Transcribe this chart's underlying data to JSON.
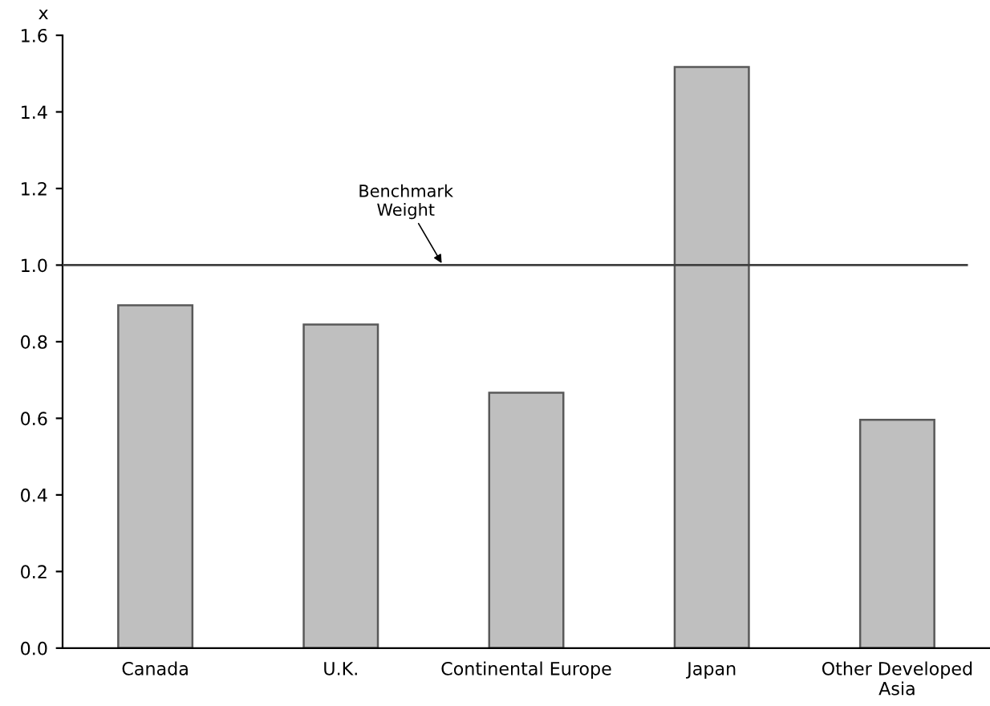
{
  "chart_data": {
    "type": "bar",
    "ylabel": "x",
    "categories": [
      "Canada",
      "U.K.",
      "Continental Europe",
      "Japan",
      "Other Developed\nAsia"
    ],
    "values": [
      0.895,
      0.845,
      0.667,
      1.517,
      0.596
    ],
    "color": "#bfbfbf",
    "ylim": [
      0,
      1.6
    ],
    "yticks": [
      {
        "value": 0,
        "label": "0.0"
      },
      {
        "value": 0.2,
        "label": "0.2"
      },
      {
        "value": 0.4,
        "label": "0.4"
      },
      {
        "value": 0.6,
        "label": "0.6"
      },
      {
        "value": 0.8,
        "label": "0.8"
      },
      {
        "value": 1.0,
        "label": "1.0"
      },
      {
        "value": 1.2,
        "label": "1.2"
      },
      {
        "value": 1.4,
        "label": "1.4"
      },
      {
        "value": 1.6,
        "label": "1.6"
      }
    ],
    "ref_lines": [
      {
        "axis": "y",
        "value": 1.0,
        "label": "Benchmark\nWeight",
        "color": "#404040"
      }
    ],
    "grid": false,
    "legend": false
  }
}
